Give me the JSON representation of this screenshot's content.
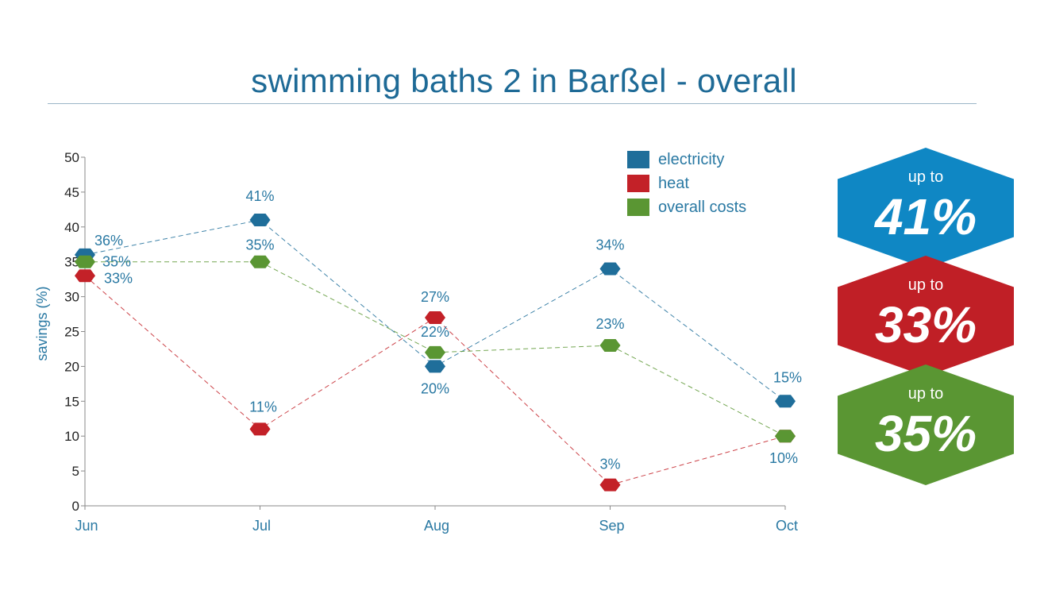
{
  "title": "swimming baths 2 in Barßel - overall",
  "chart_data": {
    "type": "line",
    "categories": [
      "Jun",
      "Jul",
      "Aug",
      "Sep",
      "Oct"
    ],
    "ylabel": "savings (%)",
    "ylim": [
      0,
      50
    ],
    "yticks": [
      0,
      5,
      10,
      15,
      20,
      25,
      30,
      35,
      40,
      45,
      50
    ],
    "grid": false,
    "legend_position": "top-right",
    "series": [
      {
        "name": "electricity",
        "color": "#1f6e9a",
        "values": [
          36,
          41,
          20,
          34,
          15
        ],
        "labels": [
          "36%",
          "41%",
          "20%",
          "34%",
          "15%"
        ]
      },
      {
        "name": "heat",
        "color": "#c32128",
        "values": [
          33,
          11,
          27,
          3,
          10
        ],
        "labels": [
          "33%",
          "11%",
          "27%",
          "3%",
          "10%"
        ]
      },
      {
        "name": "overall costs",
        "color": "#5a9633",
        "values": [
          35,
          35,
          22,
          23,
          10
        ],
        "labels": [
          "35%",
          "35%",
          "22%",
          "23%",
          "10%"
        ]
      }
    ]
  },
  "badges": [
    {
      "prefix": "up to",
      "value": "41%",
      "color": "#0f87c4"
    },
    {
      "prefix": "up to",
      "value": "33%",
      "color": "#c01f26"
    },
    {
      "prefix": "up to",
      "value": "35%",
      "color": "#5a9633"
    }
  ]
}
